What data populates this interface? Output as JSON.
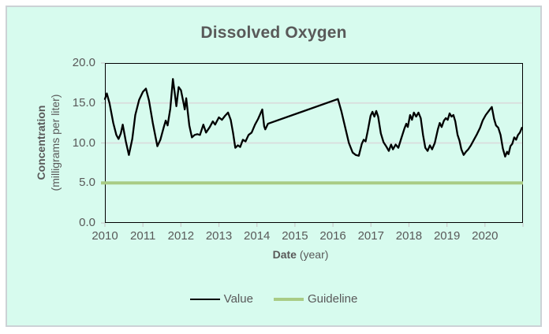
{
  "title": "Dissolved Oxygen",
  "colors": {
    "chart_background": "#d7fbee",
    "frame_border": "#ccd2d6",
    "text": "#595959",
    "gridline": "#d9dcdc",
    "tick_mark": "#c9cccc",
    "plot_border": "#000000",
    "value_line": "#000000",
    "guideline": "#a9cc85"
  },
  "y_axis": {
    "title_bold": "Concentration",
    "title_regular": "(milligrams per liter)",
    "ticks": [
      "20.0",
      "15.0",
      "10.0",
      "5.0",
      "0.0"
    ]
  },
  "x_axis": {
    "title_bold": "Date",
    "title_regular": "(year)",
    "ticks": [
      "2010",
      "2011",
      "2012",
      "2013",
      "2014",
      "2015",
      "2016",
      "2017",
      "2018",
      "2019",
      "2020"
    ]
  },
  "legend": {
    "items": [
      {
        "label": "Value",
        "color": "#000000",
        "line_thickness": 2
      },
      {
        "label": "Guideline",
        "color": "#a9cc85",
        "line_thickness": 4
      }
    ]
  },
  "chart_data": {
    "type": "line",
    "title": "Dissolved Oxygen",
    "xlabel": "Date (year)",
    "ylabel": "Concentration (milligrams per liter)",
    "xlim": [
      2010,
      2021
    ],
    "ylim": [
      0,
      20
    ],
    "y_tick_interval": 5,
    "x_tick_interval": 1,
    "grid": "horizontal",
    "legend_position": "bottom",
    "series": [
      {
        "name": "Value",
        "color": "#000000",
        "x": [
          2010.0,
          2010.05,
          2010.12,
          2010.22,
          2010.3,
          2010.36,
          2010.42,
          2010.47,
          2010.55,
          2010.63,
          2010.72,
          2010.8,
          2010.9,
          2011.0,
          2011.08,
          2011.16,
          2011.26,
          2011.38,
          2011.46,
          2011.55,
          2011.6,
          2011.65,
          2011.72,
          2011.79,
          2011.84,
          2011.88,
          2011.94,
          2012.0,
          2012.07,
          2012.1,
          2012.14,
          2012.22,
          2012.29,
          2012.36,
          2012.43,
          2012.5,
          2012.59,
          2012.66,
          2012.76,
          2012.84,
          2012.9,
          2013.0,
          2013.08,
          2013.16,
          2013.24,
          2013.31,
          2013.37,
          2013.43,
          2013.5,
          2013.56,
          2013.63,
          2013.7,
          2013.78,
          2013.86,
          2013.95,
          2014.03,
          2014.14,
          2014.19,
          2014.22,
          2014.29,
          2016.13,
          2016.22,
          2016.32,
          2016.42,
          2016.52,
          2016.6,
          2016.68,
          2016.76,
          2016.81,
          2016.86,
          2016.92,
          2016.99,
          2017.04,
          2017.09,
          2017.14,
          2017.19,
          2017.26,
          2017.33,
          2017.4,
          2017.47,
          2017.53,
          2017.58,
          2017.65,
          2017.72,
          2017.8,
          2017.88,
          2017.93,
          2017.97,
          2018.03,
          2018.08,
          2018.13,
          2018.19,
          2018.25,
          2018.31,
          2018.37,
          2018.43,
          2018.49,
          2018.55,
          2018.61,
          2018.68,
          2018.76,
          2018.81,
          2018.86,
          2018.92,
          2018.97,
          2019.02,
          2019.07,
          2019.12,
          2019.17,
          2019.22,
          2019.28,
          2019.33,
          2019.38,
          2019.44,
          2019.5,
          2019.56,
          2019.63,
          2019.71,
          2019.79,
          2019.87,
          2019.94,
          2020.02,
          2020.1,
          2020.18,
          2020.24,
          2020.29,
          2020.35,
          2020.41,
          2020.47,
          2020.53,
          2020.58,
          2020.62,
          2020.67,
          2020.72,
          2020.77,
          2020.82,
          2020.87,
          2020.92,
          2020.97
        ],
        "y": [
          15.5,
          16.2,
          15.0,
          12.5,
          11.0,
          10.5,
          11.2,
          12.3,
          10.2,
          8.5,
          10.5,
          13.5,
          15.4,
          16.4,
          16.8,
          15.3,
          12.5,
          9.6,
          10.4,
          12.0,
          12.8,
          12.2,
          14.3,
          18.0,
          16.1,
          14.6,
          17.0,
          16.6,
          15.0,
          14.2,
          15.6,
          12.2,
          10.7,
          11.0,
          11.1,
          11.0,
          12.3,
          11.3,
          12.0,
          12.7,
          12.3,
          13.2,
          12.9,
          13.4,
          13.8,
          12.9,
          11.3,
          9.4,
          9.7,
          9.5,
          10.4,
          10.2,
          11.0,
          11.3,
          12.3,
          13.0,
          14.2,
          12.1,
          11.7,
          12.4,
          15.5,
          14.0,
          12.0,
          10.0,
          8.8,
          8.5,
          8.4,
          9.9,
          10.4,
          10.2,
          11.6,
          13.4,
          13.9,
          13.3,
          14.0,
          13.3,
          11.2,
          10.1,
          9.6,
          9.0,
          9.8,
          9.2,
          9.8,
          9.4,
          10.6,
          11.8,
          12.4,
          12.0,
          13.5,
          12.9,
          13.8,
          13.3,
          13.8,
          13.1,
          11.0,
          9.4,
          9.0,
          9.7,
          9.2,
          10.0,
          11.7,
          12.5,
          12.0,
          12.8,
          13.1,
          12.9,
          13.7,
          13.3,
          13.5,
          12.7,
          11.0,
          10.3,
          9.2,
          8.5,
          8.9,
          9.2,
          9.7,
          10.4,
          11.1,
          11.9,
          12.8,
          13.5,
          14.0,
          14.5,
          13.0,
          12.2,
          11.9,
          11.0,
          9.3,
          8.3,
          8.9,
          8.6,
          9.6,
          9.9,
          10.7,
          10.4,
          11.0,
          11.3,
          11.9
        ]
      },
      {
        "name": "Guideline",
        "type": "hline",
        "color": "#a9cc85",
        "value": 5.0
      }
    ]
  }
}
